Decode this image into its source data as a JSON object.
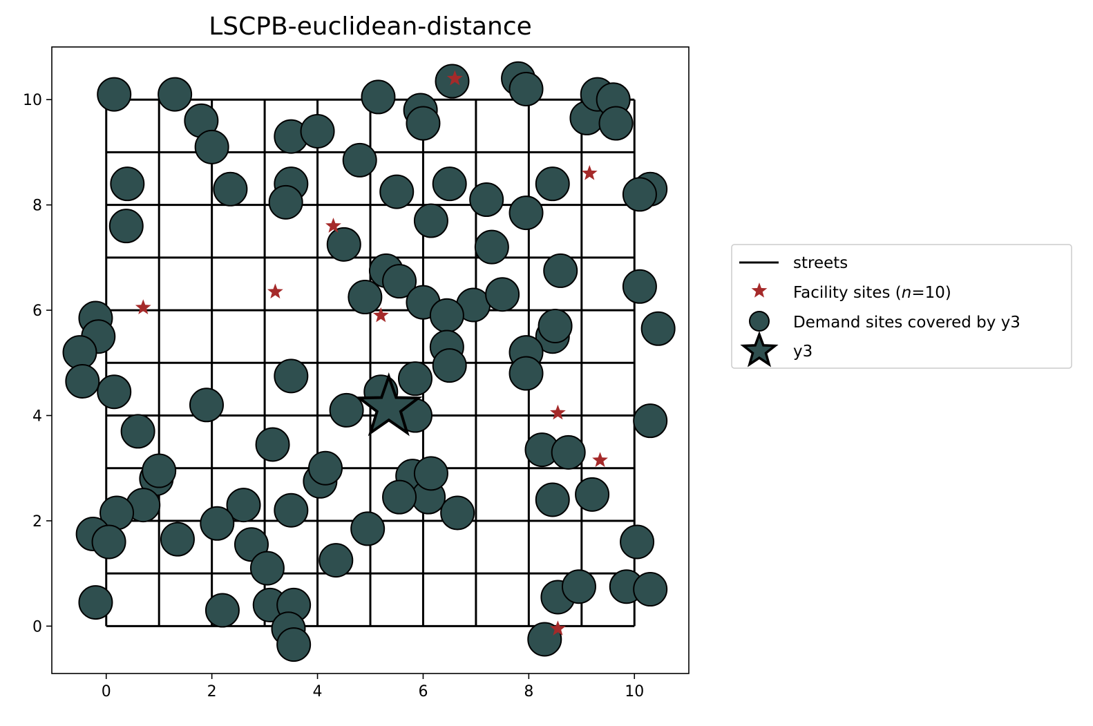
{
  "chart_data": {
    "type": "scatter",
    "title": "LSCPB-euclidean-distance",
    "xlabel": "",
    "ylabel": "",
    "xlim": [
      -1.03,
      11.03
    ],
    "ylim": [
      -0.9,
      11.0
    ],
    "xticks": [
      0,
      2,
      4,
      6,
      8,
      10
    ],
    "yticks": [
      0,
      2,
      4,
      6,
      8,
      10
    ],
    "grid": false,
    "legend_position": "right",
    "colors": {
      "streets": "#000000",
      "facility": "#a52a2a",
      "demand": "#2f4f4f",
      "demand_edge": "#000000"
    },
    "streets": {
      "x_range": [
        0,
        10
      ],
      "y_range": [
        0,
        10
      ],
      "vertical_x": [
        0,
        1,
        2,
        3,
        4,
        5,
        6,
        7,
        8,
        9,
        10
      ],
      "horizontal_y": [
        0,
        1,
        2,
        3,
        4,
        5,
        6,
        7,
        8,
        9,
        10
      ]
    },
    "legend": [
      {
        "label": "streets",
        "marker": "line"
      },
      {
        "label": "Facility sites (n=10)",
        "label_prefix": "Facility sites (",
        "label_italic": "n",
        "label_suffix": "=10)",
        "marker": "small-star"
      },
      {
        "label": "Demand sites covered by y3",
        "marker": "circle"
      },
      {
        "label": "y3",
        "marker": "large-star"
      }
    ],
    "series": [
      {
        "name": "Demand sites covered by y3",
        "points": [
          [
            0.15,
            10.1
          ],
          [
            1.3,
            10.1
          ],
          [
            1.8,
            9.6
          ],
          [
            2.0,
            9.1
          ],
          [
            2.35,
            8.3
          ],
          [
            0.4,
            8.4
          ],
          [
            0.38,
            7.6
          ],
          [
            3.5,
            9.3
          ],
          [
            4.0,
            9.4
          ],
          [
            3.5,
            8.4
          ],
          [
            3.4,
            8.05
          ],
          [
            4.8,
            8.85
          ],
          [
            5.15,
            10.05
          ],
          [
            5.95,
            9.8
          ],
          [
            6.0,
            9.55
          ],
          [
            6.55,
            10.35
          ],
          [
            7.8,
            10.4
          ],
          [
            7.95,
            10.2
          ],
          [
            9.1,
            9.65
          ],
          [
            9.3,
            10.1
          ],
          [
            9.6,
            10.0
          ],
          [
            9.65,
            9.55
          ],
          [
            10.3,
            8.3
          ],
          [
            10.1,
            8.2
          ],
          [
            8.45,
            8.4
          ],
          [
            7.95,
            7.85
          ],
          [
            7.2,
            8.1
          ],
          [
            6.15,
            7.7
          ],
          [
            6.5,
            8.4
          ],
          [
            5.5,
            8.25
          ],
          [
            4.5,
            7.25
          ],
          [
            7.3,
            7.2
          ],
          [
            8.6,
            6.75
          ],
          [
            10.1,
            6.45
          ],
          [
            10.45,
            5.65
          ],
          [
            5.3,
            6.75
          ],
          [
            5.55,
            6.55
          ],
          [
            4.9,
            6.25
          ],
          [
            6.0,
            6.15
          ],
          [
            6.95,
            6.1
          ],
          [
            7.5,
            6.3
          ],
          [
            6.45,
            5.9
          ],
          [
            6.45,
            5.3
          ],
          [
            6.5,
            4.95
          ],
          [
            8.45,
            5.5
          ],
          [
            8.5,
            5.7
          ],
          [
            7.95,
            5.2
          ],
          [
            7.95,
            4.8
          ],
          [
            5.85,
            4.7
          ],
          [
            5.85,
            4.0
          ],
          [
            5.2,
            4.45
          ],
          [
            4.55,
            4.1
          ],
          [
            3.5,
            4.75
          ],
          [
            1.9,
            4.2
          ],
          [
            0.15,
            4.45
          ],
          [
            0.6,
            3.7
          ],
          [
            -0.2,
            5.85
          ],
          [
            -0.15,
            5.5
          ],
          [
            -0.5,
            5.2
          ],
          [
            -0.45,
            4.65
          ],
          [
            3.15,
            3.45
          ],
          [
            4.05,
            2.75
          ],
          [
            4.15,
            3.0
          ],
          [
            5.8,
            2.85
          ],
          [
            6.1,
            2.45
          ],
          [
            6.15,
            2.9
          ],
          [
            5.55,
            2.45
          ],
          [
            6.65,
            2.15
          ],
          [
            4.95,
            1.85
          ],
          [
            4.35,
            1.25
          ],
          [
            3.5,
            2.2
          ],
          [
            2.6,
            2.3
          ],
          [
            2.1,
            1.95
          ],
          [
            2.75,
            1.55
          ],
          [
            3.05,
            1.1
          ],
          [
            1.35,
            1.65
          ],
          [
            0.95,
            2.8
          ],
          [
            1.0,
            2.95
          ],
          [
            0.7,
            2.3
          ],
          [
            0.2,
            2.15
          ],
          [
            -0.25,
            1.75
          ],
          [
            0.05,
            1.6
          ],
          [
            -0.2,
            0.45
          ],
          [
            2.2,
            0.3
          ],
          [
            3.1,
            0.4
          ],
          [
            3.55,
            0.4
          ],
          [
            3.45,
            -0.05
          ],
          [
            3.55,
            -0.35
          ],
          [
            8.25,
            3.35
          ],
          [
            8.75,
            3.3
          ],
          [
            9.2,
            2.5
          ],
          [
            8.45,
            2.4
          ],
          [
            10.05,
            1.6
          ],
          [
            10.3,
            3.9
          ],
          [
            8.55,
            0.55
          ],
          [
            8.95,
            0.75
          ],
          [
            9.85,
            0.75
          ],
          [
            10.3,
            0.7
          ],
          [
            8.3,
            -0.25
          ]
        ]
      },
      {
        "name": "Facility sites (n=10)",
        "points": [
          [
            6.6,
            10.4
          ],
          [
            9.15,
            8.6
          ],
          [
            4.3,
            7.6
          ],
          [
            0.7,
            6.05
          ],
          [
            3.2,
            6.35
          ],
          [
            5.2,
            5.9
          ],
          [
            8.55,
            4.05
          ],
          [
            9.35,
            3.15
          ],
          [
            8.55,
            -0.05
          ],
          [
            5.35,
            4.15
          ]
        ]
      },
      {
        "name": "y3",
        "points": [
          [
            5.35,
            4.15
          ]
        ]
      }
    ]
  }
}
